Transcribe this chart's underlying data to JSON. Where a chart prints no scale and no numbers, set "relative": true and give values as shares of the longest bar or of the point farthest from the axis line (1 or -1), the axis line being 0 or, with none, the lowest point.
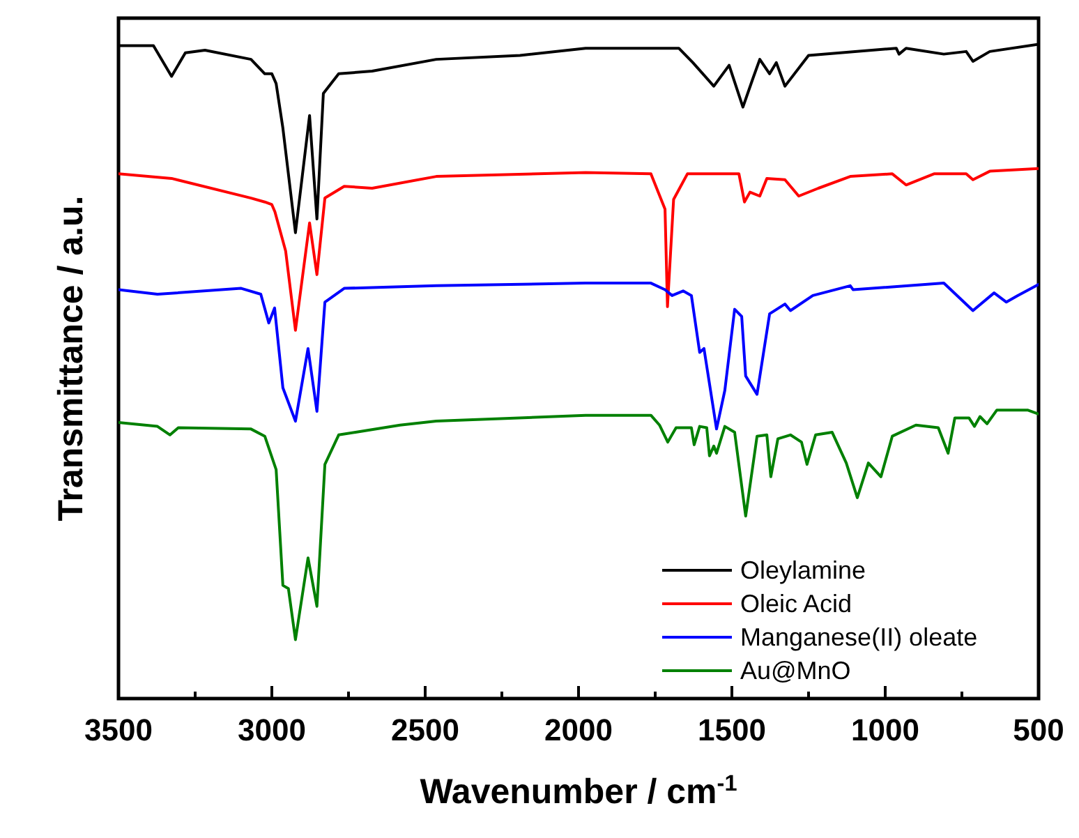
{
  "chart_data": {
    "type": "line",
    "relative": true,
    "xlabel": "Wavenumber / cm$^{-1}$",
    "ylabel": "Transmittance / a.u.",
    "legend": "bottom right",
    "xlim": [
      3500,
      500
    ],
    "xticks": [
      3500,
      {
        "value": 3250,
        "label": null
      },
      3000,
      {
        "value": 2750,
        "label": null
      },
      2500,
      {
        "value": 2250,
        "label": null
      },
      2000,
      {
        "value": 1750,
        "label": null
      },
      1500,
      {
        "value": 1250,
        "label": null
      },
      1000,
      {
        "value": 750,
        "label": null
      },
      500
    ],
    "series": [
      {
        "name": "Oleylamine",
        "color": "#000000",
        "x": [
          3500,
          3386,
          3327,
          3282,
          3218,
          3068,
          3023,
          3000,
          2986,
          2964,
          2923,
          2877,
          2853,
          2832,
          2782,
          2673,
          2464,
          2191,
          1977,
          1673,
          1627,
          1559,
          1509,
          1464,
          1432,
          1409,
          1377,
          1355,
          1327,
          1250,
          964,
          955,
          932,
          809,
          736,
          714,
          659,
          500
        ],
        "values": [
          0.998,
          0.998,
          0.951,
          0.987,
          0.991,
          0.977,
          0.955,
          0.955,
          0.94,
          0.872,
          0.712,
          0.891,
          0.733,
          0.925,
          0.955,
          0.959,
          0.977,
          0.983,
          0.994,
          0.994,
          0.972,
          0.936,
          0.968,
          0.904,
          0.947,
          0.977,
          0.955,
          0.972,
          0.936,
          0.983,
          0.994,
          0.985,
          0.994,
          0.985,
          0.989,
          0.974,
          0.989,
          1.0
        ]
      },
      {
        "name": "Oleic Acid",
        "color": "#ff0000",
        "x": [
          3500,
          3327,
          3068,
          3023,
          3000,
          2990,
          2955,
          2923,
          2877,
          2853,
          2827,
          2764,
          2673,
          2464,
          1977,
          1764,
          1718,
          1710,
          1690,
          1645,
          1477,
          1459,
          1441,
          1409,
          1386,
          1327,
          1282,
          1218,
          1114,
          977,
          932,
          841,
          736,
          714,
          659,
          500
        ],
        "values": [
          0.802,
          0.795,
          0.765,
          0.759,
          0.755,
          0.744,
          0.684,
          0.563,
          0.727,
          0.648,
          0.765,
          0.783,
          0.78,
          0.798,
          0.804,
          0.802,
          0.748,
          0.599,
          0.763,
          0.802,
          0.802,
          0.759,
          0.774,
          0.768,
          0.795,
          0.793,
          0.768,
          0.78,
          0.798,
          0.802,
          0.785,
          0.802,
          0.802,
          0.793,
          0.806,
          0.81
        ]
      },
      {
        "name": "Manganese(II) oleate",
        "color": "#0000ff",
        "x": [
          3500,
          3373,
          3100,
          3036,
          3010,
          2991,
          2964,
          2923,
          2882,
          2853,
          2827,
          2764,
          2464,
          1977,
          1764,
          1718,
          1695,
          1659,
          1632,
          1605,
          1591,
          1550,
          1523,
          1491,
          1468,
          1455,
          1418,
          1377,
          1327,
          1309,
          1236,
          1114,
          1105,
          809,
          714,
          645,
          605,
          568,
          500
        ],
        "values": [
          0.625,
          0.618,
          0.627,
          0.618,
          0.574,
          0.597,
          0.475,
          0.424,
          0.535,
          0.439,
          0.606,
          0.627,
          0.631,
          0.635,
          0.635,
          0.625,
          0.616,
          0.623,
          0.616,
          0.529,
          0.535,
          0.412,
          0.471,
          0.595,
          0.584,
          0.493,
          0.465,
          0.588,
          0.603,
          0.593,
          0.616,
          0.631,
          0.625,
          0.635,
          0.593,
          0.62,
          0.606,
          0.616,
          0.633
        ]
      },
      {
        "name": "Au@MnO",
        "color": "#008000",
        "x": [
          3500,
          3373,
          3332,
          3305,
          3068,
          3023,
          2986,
          2964,
          2946,
          2923,
          2882,
          2853,
          2827,
          2782,
          2727,
          2582,
          2464,
          1977,
          1764,
          1736,
          1709,
          1682,
          1632,
          1623,
          1605,
          1582,
          1573,
          1559,
          1550,
          1523,
          1491,
          1455,
          1418,
          1386,
          1373,
          1350,
          1309,
          1273,
          1255,
          1227,
          1173,
          1127,
          1091,
          1055,
          1014,
          977,
          900,
          827,
          795,
          773,
          727,
          709,
          691,
          668,
          636,
          536,
          500
        ],
        "values": [
          0.422,
          0.416,
          0.403,
          0.414,
          0.412,
          0.401,
          0.35,
          0.173,
          0.168,
          0.09,
          0.215,
          0.141,
          0.358,
          0.403,
          0.407,
          0.418,
          0.424,
          0.433,
          0.433,
          0.418,
          0.392,
          0.414,
          0.414,
          0.388,
          0.416,
          0.414,
          0.371,
          0.386,
          0.375,
          0.416,
          0.407,
          0.279,
          0.401,
          0.403,
          0.339,
          0.397,
          0.403,
          0.392,
          0.358,
          0.403,
          0.407,
          0.36,
          0.307,
          0.36,
          0.339,
          0.401,
          0.418,
          0.414,
          0.375,
          0.429,
          0.429,
          0.416,
          0.431,
          0.42,
          0.441,
          0.441,
          0.435
        ]
      }
    ]
  }
}
